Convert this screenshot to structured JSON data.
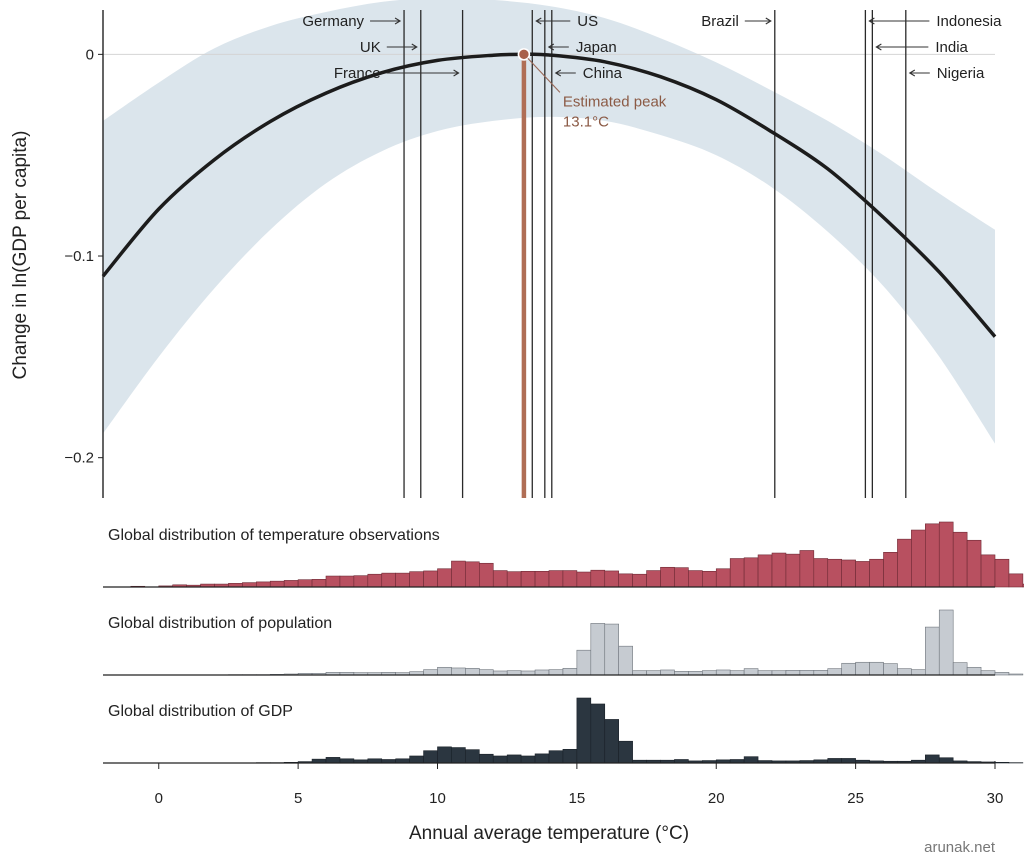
{
  "chart_data": {
    "type": "line",
    "ylabel": "Change in ln(GDP per capita)",
    "xlabel": "Annual average temperature (°C)",
    "xlim": [
      -2,
      30
    ],
    "ylim": [
      -0.22,
      0.022
    ],
    "x_ticks": [
      "0",
      "5",
      "10",
      "15",
      "20",
      "25",
      "30"
    ],
    "x_tick_values": [
      0,
      5,
      10,
      15,
      20,
      25,
      30
    ],
    "y_ticks": [
      "0",
      "−0.1",
      "−0.2"
    ],
    "y_tick_values": [
      0,
      -0.1,
      -0.2
    ],
    "grid": false,
    "curve": {
      "x": [
        -2,
        0,
        2,
        4,
        6,
        8,
        10,
        12,
        13.1,
        14,
        16,
        18,
        20,
        22,
        24,
        26,
        28,
        30
      ],
      "y": [
        -0.11,
        -0.0767,
        -0.0522,
        -0.0333,
        -0.0192,
        -0.0091,
        -0.003,
        -0.0004,
        0.0,
        -0.0003,
        -0.0037,
        -0.0111,
        -0.0225,
        -0.0385,
        -0.0568,
        -0.0809,
        -0.108,
        -0.14
      ]
    },
    "confidence_band": {
      "x": [
        -2,
        0,
        2,
        4,
        6,
        8,
        10,
        12,
        14,
        16,
        18,
        20,
        22,
        24,
        26,
        28,
        30
      ],
      "upper": [
        -0.033,
        -0.014,
        0.003,
        0.014,
        0.021,
        0.026,
        0.028,
        0.027,
        0.024,
        0.018,
        0.008,
        -0.004,
        -0.018,
        -0.033,
        -0.05,
        -0.069,
        -0.087
      ],
      "lower": [
        -0.188,
        -0.15,
        -0.116,
        -0.087,
        -0.064,
        -0.048,
        -0.038,
        -0.033,
        -0.031,
        -0.033,
        -0.04,
        -0.05,
        -0.066,
        -0.088,
        -0.115,
        -0.15,
        -0.193
      ]
    },
    "peak": {
      "x": 13.1,
      "y": 0,
      "label_line1": "Estimated peak",
      "label_line2": "13.1°C"
    },
    "countries": [
      {
        "name": "Germany",
        "x": 8.8,
        "side": "left",
        "row": 0
      },
      {
        "name": "UK",
        "x": 9.4,
        "side": "left",
        "row": 1
      },
      {
        "name": "France",
        "x": 10.9,
        "side": "left",
        "row": 2
      },
      {
        "name": "US",
        "x": 13.4,
        "side": "right",
        "row": 0
      },
      {
        "name": "Japan",
        "x": 13.85,
        "side": "right",
        "row": 1
      },
      {
        "name": "China",
        "x": 14.1,
        "side": "right",
        "row": 2
      },
      {
        "name": "Brazil",
        "x": 22.1,
        "side": "left",
        "row": 0
      },
      {
        "name": "Indonesia",
        "x": 25.35,
        "side": "right",
        "row": 0
      },
      {
        "name": "India",
        "x": 25.6,
        "side": "right",
        "row": 1
      },
      {
        "name": "Nigeria",
        "x": 26.8,
        "side": "right",
        "row": 2
      }
    ],
    "histograms": [
      {
        "title": "Global distribution of temperature observations",
        "color": "#b85060",
        "bins_start": -2,
        "bin_width": 0.5,
        "values": [
          0,
          0,
          0.2,
          0,
          0.3,
          0.6,
          0.5,
          0.8,
          0.8,
          1.0,
          1.2,
          1.4,
          1.6,
          1.8,
          2.0,
          2.1,
          3.0,
          3.0,
          3.1,
          3.5,
          3.8,
          3.8,
          4.2,
          4.4,
          5.0,
          7.1,
          6.9,
          6.5,
          4.5,
          4.2,
          4.3,
          4.3,
          4.5,
          4.5,
          4.1,
          4.6,
          4.4,
          3.6,
          3.5,
          4.5,
          5.4,
          5.3,
          4.5,
          4.3,
          5.0,
          7.8,
          8.0,
          8.8,
          9.3,
          9.0,
          10.0,
          7.8,
          7.6,
          7.4,
          7.0,
          7.6,
          9.5,
          13.1,
          15.6,
          17.3,
          17.8,
          15.0,
          12.8,
          8.8,
          7.6,
          3.6,
          0.8,
          0
        ]
      },
      {
        "title": "Global distribution of population",
        "color": "#c6cbd1",
        "bins_start": -2,
        "bin_width": 0.5,
        "values": [
          0,
          0,
          0,
          0,
          0,
          0,
          0,
          0,
          0,
          0.1,
          0.1,
          0.1,
          0.2,
          0.3,
          0.5,
          0.5,
          0.8,
          0.8,
          0.7,
          0.7,
          0.8,
          0.7,
          1.0,
          1.6,
          2.3,
          2.1,
          2.0,
          1.6,
          1.2,
          1.3,
          1.2,
          1.5,
          1.6,
          2.0,
          7.4,
          15.4,
          15.2,
          8.6,
          1.3,
          1.3,
          1.5,
          1.1,
          1.1,
          1.3,
          1.5,
          1.3,
          1.9,
          1.3,
          1.3,
          1.4,
          1.4,
          1.4,
          1.9,
          3.5,
          3.8,
          3.8,
          3.4,
          1.9,
          1.6,
          14.3,
          19.4,
          3.7,
          2.3,
          1.3,
          0.8,
          0.3,
          0,
          0
        ]
      },
      {
        "title": "Global distribution of GDP",
        "color": "#2b3640",
        "bins_start": -2,
        "bin_width": 0.5,
        "values": [
          0,
          0,
          0,
          0,
          0,
          0,
          0,
          0,
          0,
          0,
          0,
          0.1,
          0.1,
          0.2,
          0.4,
          1.1,
          1.6,
          1.2,
          0.9,
          1.2,
          1.0,
          1.2,
          2.0,
          3.5,
          4.6,
          4.4,
          3.8,
          2.5,
          2.0,
          2.3,
          2.0,
          2.6,
          3.5,
          3.9,
          18.5,
          16.8,
          12.4,
          6.2,
          0.8,
          0.8,
          0.8,
          1.0,
          0.6,
          0.7,
          0.9,
          1.0,
          1.8,
          0.7,
          0.6,
          0.6,
          0.7,
          0.9,
          1.3,
          1.3,
          0.8,
          0.6,
          0.5,
          0.5,
          0.8,
          2.3,
          1.5,
          0.6,
          0.4,
          0.3,
          0.2,
          0.1,
          0,
          0
        ]
      }
    ]
  },
  "credit": "arunak.net"
}
